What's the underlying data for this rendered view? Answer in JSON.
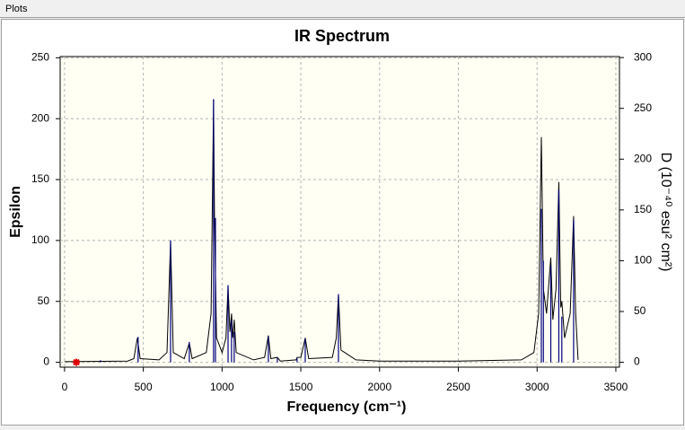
{
  "menu": [
    "Plots"
  ],
  "chart_data": {
    "type": "line",
    "title": "IR Spectrum",
    "xlabel": "Frequency (cm⁻¹)",
    "ylabel": "Epsilon",
    "y2label": "D (10⁻⁴⁰ esu² cm²)",
    "xlim": [
      -28,
      3523
    ],
    "ylim": [
      -4,
      251
    ],
    "y2lim": [
      -4.8,
      301
    ],
    "xticks": [
      0,
      500,
      1000,
      1500,
      2000,
      2500,
      3000,
      3500
    ],
    "yticks": [
      0,
      50,
      100,
      150,
      200,
      250
    ],
    "y2ticks": [
      0,
      50,
      100,
      150,
      200,
      250,
      300
    ],
    "grid": true,
    "series": [
      {
        "type": "line",
        "color": "#000000",
        "axis": "y",
        "x": [
          0,
          400,
          440,
          462,
          480,
          600,
          650,
          673,
          690,
          760,
          792,
          810,
          900,
          930,
          946,
          952,
          965,
          1000,
          1025,
          1038,
          1050,
          1060,
          1068,
          1077,
          1090,
          1200,
          1270,
          1294,
          1310,
          1351,
          1370,
          1470,
          1476,
          1500,
          1528,
          1550,
          1700,
          1725,
          1739,
          1755,
          1850,
          2000,
          2500,
          2900,
          2980,
          3010,
          3027,
          3040,
          3060,
          3087,
          3100,
          3120,
          3138,
          3150,
          3157,
          3175,
          3210,
          3232,
          3245,
          3260
        ],
        "values": [
          0.5,
          1,
          3,
          20,
          3,
          2,
          8,
          100,
          8,
          3,
          16,
          3,
          8,
          40,
          216,
          120,
          20,
          8,
          20,
          63,
          25,
          40,
          20,
          35,
          8,
          2,
          4,
          22,
          3,
          4,
          1,
          2,
          4,
          4,
          20,
          3,
          4,
          20,
          56,
          10,
          2,
          1,
          1,
          2,
          8,
          40,
          185,
          60,
          40,
          86,
          35,
          60,
          148,
          45,
          50,
          20,
          40,
          120,
          40,
          2
        ]
      },
      {
        "type": "stick",
        "color": "#00007f",
        "axis": "y2",
        "x": [
          228,
          467,
          673,
          792,
          946,
          958,
          1038,
          1060,
          1077,
          1294,
          1351,
          1476,
          1528,
          1739,
          3027,
          3040,
          3087,
          3138,
          3157,
          3232
        ],
        "values": [
          2,
          25,
          120,
          20,
          259,
          142,
          76,
          41,
          30,
          25,
          4,
          4,
          23,
          67,
          151,
          100,
          95,
          170,
          45,
          140
        ]
      }
    ],
    "marker": {
      "x": 75,
      "y": 0,
      "color": "#e00000"
    }
  }
}
